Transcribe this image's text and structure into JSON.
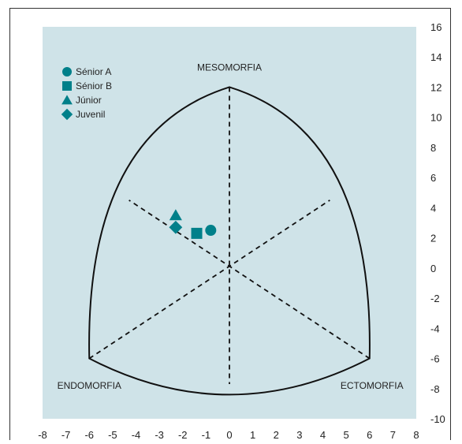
{
  "chart_data": {
    "type": "scatter",
    "title": "",
    "xlabel": "",
    "ylabel": "",
    "xlim": [
      -8,
      8
    ],
    "ylim": [
      -10,
      16
    ],
    "x_ticks": [
      "-8",
      "-7",
      "-6",
      "-5",
      "-4",
      "-3",
      "-2",
      "-1",
      "0",
      "1",
      "2",
      "3",
      "4",
      "5",
      "6",
      "7",
      "8"
    ],
    "y_ticks": [
      "16",
      "14",
      "12",
      "10",
      "8",
      "6",
      "4",
      "2",
      "0",
      "-2",
      "-4",
      "-6",
      "-8",
      "-10"
    ],
    "vertex_labels": {
      "mesomorphy": "MESOMORFIA",
      "endomorphy": "ENDOMORFIA",
      "ectomorphy": "ECTOMORFIA"
    },
    "background_color": "#cfe3e8",
    "marker_color": "#00808a",
    "legend_position": "top-left",
    "series": [
      {
        "name": "Sénior A",
        "marker": "circle",
        "points": [
          {
            "x": -0.8,
            "y": 2.5
          }
        ]
      },
      {
        "name": "Sénior B",
        "marker": "square",
        "points": [
          {
            "x": -1.4,
            "y": 2.3
          }
        ]
      },
      {
        "name": "Júnior",
        "marker": "triangle",
        "points": [
          {
            "x": -2.3,
            "y": 3.5
          }
        ]
      },
      {
        "name": "Juvenil",
        "marker": "diamond",
        "points": [
          {
            "x": -2.3,
            "y": 2.7
          }
        ]
      }
    ]
  }
}
